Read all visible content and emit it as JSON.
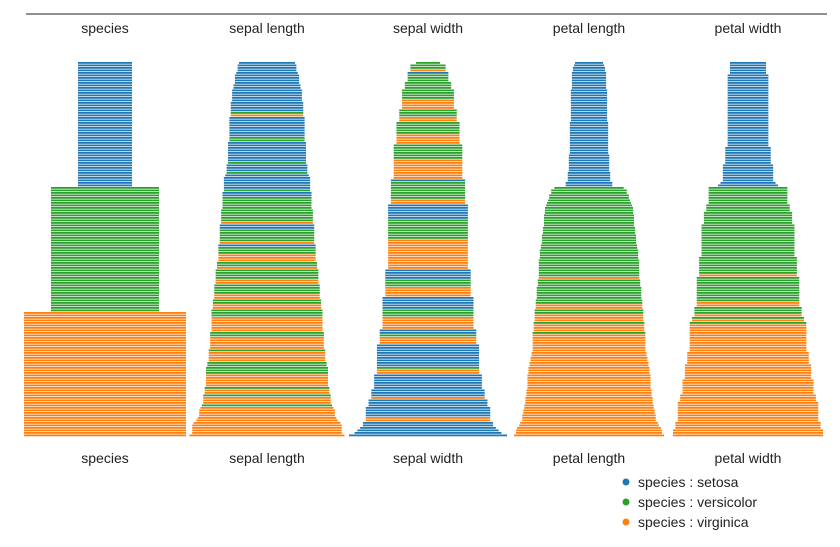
{
  "chart_data": {
    "type": "bar",
    "subtype": "parallel horizontal bar columns (one column per dimension, records stacked vertically, sorted by species)",
    "columns_top": [
      "species",
      "sepal length",
      "sepal width",
      "petal length",
      "petal width"
    ],
    "columns_bottom": [
      "species",
      "sepal length",
      "sepal width",
      "petal length",
      "petal width"
    ],
    "legend": {
      "items": [
        {
          "label": "species : setosa",
          "color": "#1f77b4"
        },
        {
          "label": "species : versicolor",
          "color": "#2ca02c"
        },
        {
          "label": "species : virginica",
          "color": "#ff7f0e"
        }
      ],
      "placement": "bottom-right"
    },
    "value_ranges": {
      "sepal length": [
        4.3,
        7.9
      ],
      "sepal width": [
        2.0,
        4.4
      ],
      "petal length": [
        1.0,
        6.9
      ],
      "petal width": [
        0.1,
        2.5
      ]
    },
    "species_bar_value": {
      "setosa": 1,
      "versicolor": 2,
      "virginica": 3
    },
    "species_count": {
      "setosa": 50,
      "versicolor": 50,
      "virginica": 50
    }
  }
}
